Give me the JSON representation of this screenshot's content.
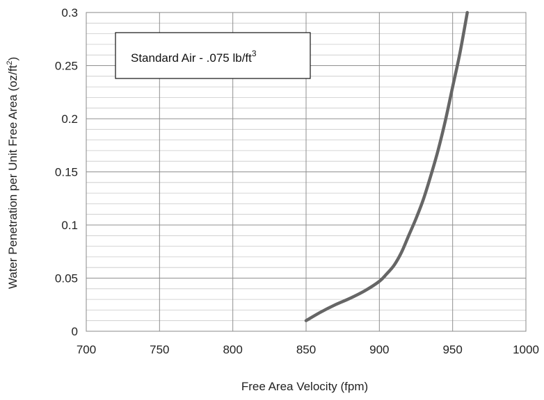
{
  "chart_data": {
    "type": "line",
    "title": "",
    "xlabel": "Free Area Velocity (fpm)",
    "ylabel_main": "Water Penetration per Unit Free Area (oz/ft",
    "ylabel_sup": "2",
    "ylabel_end": ")",
    "xlim": [
      700,
      1000
    ],
    "ylim": [
      0,
      0.3
    ],
    "x_ticks": [
      700,
      750,
      800,
      850,
      900,
      950,
      1000
    ],
    "y_ticks": [
      0,
      0.05,
      0.1,
      0.15,
      0.2,
      0.25,
      0.3
    ],
    "x_tick_labels": [
      "700",
      "750",
      "800",
      "850",
      "900",
      "950",
      "1000"
    ],
    "y_tick_labels": [
      "0",
      "0.05",
      "0.1",
      "0.15",
      "0.2",
      "0.25",
      "0.3"
    ],
    "grid": true,
    "annotation_main": "Standard Air - .075 lb/ft",
    "annotation_sup": "3",
    "series": [
      {
        "color": "#666666",
        "x": [
          850,
          860,
          870,
          880,
          890,
          900,
          905,
          910,
          915,
          920,
          925,
          930,
          935,
          940,
          945,
          950,
          955,
          960
        ],
        "y": [
          0.01,
          0.018,
          0.025,
          0.031,
          0.038,
          0.047,
          0.054,
          0.062,
          0.074,
          0.09,
          0.106,
          0.124,
          0.146,
          0.17,
          0.198,
          0.23,
          0.262,
          0.3
        ]
      }
    ]
  }
}
